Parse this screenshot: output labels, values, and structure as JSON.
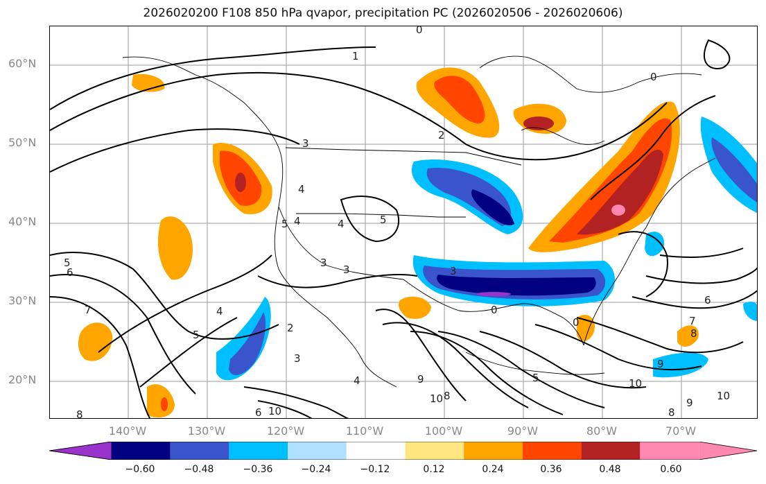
{
  "title": "2026020200 F108 850 hPa qvapor, precipitation PC (2026020506 - 2026020606)",
  "lat_labels": [
    "60°N",
    "50°N",
    "40°N",
    "30°N",
    "20°N"
  ],
  "lon_labels": [
    "140°W",
    "130°W",
    "120°W",
    "110°W",
    "100°W",
    "90°W",
    "80°W",
    "70°W"
  ],
  "contour_labels": [
    "0",
    "1",
    "2",
    "3",
    "4",
    "5",
    "6",
    "7",
    "8",
    "9",
    "10"
  ],
  "colorbar": {
    "colors": [
      "#9a33cc",
      "#000080",
      "#3a55cc",
      "#00bfff",
      "#b0e0ff",
      "#ffffff",
      "#ffe680",
      "#ffa500",
      "#ff4500",
      "#b22222",
      "#ff88b0"
    ],
    "tick_labels": [
      "−0.60",
      "−0.48",
      "−0.36",
      "−0.24",
      "−0.12",
      "0.12",
      "0.24",
      "0.36",
      "0.48",
      "0.60"
    ]
  }
}
